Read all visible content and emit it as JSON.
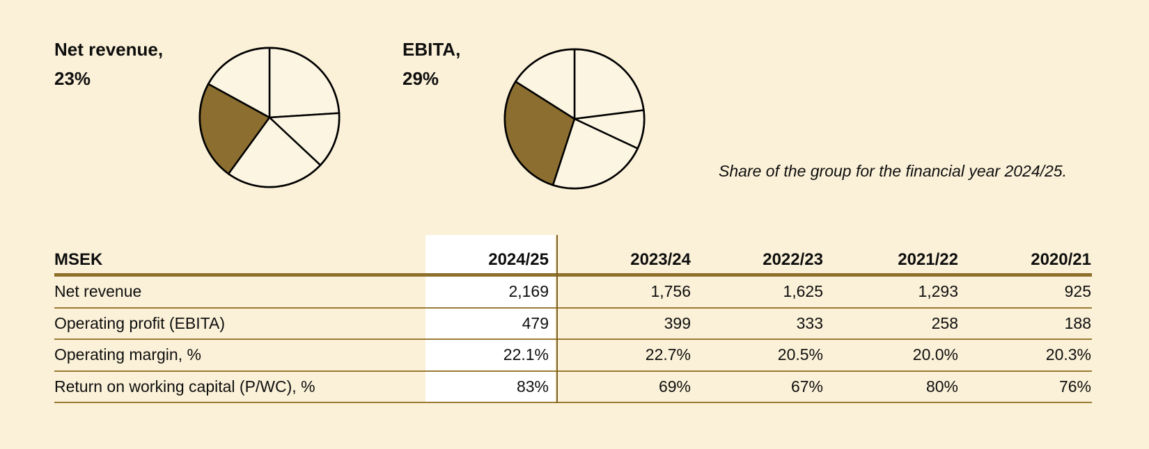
{
  "page": {
    "background": "#FBF1D8",
    "caption": "Share of the group for the financial year 2024/25."
  },
  "colors": {
    "highlight": "#8B6E30",
    "pie_fill": "#FCF5E2",
    "pie_stroke": "#000000",
    "table_thick_line": "#8E6F2C",
    "table_thin_line": "#997A33",
    "highlight_column_bg": "#FFFFFF",
    "column_divider": "#7A5F20",
    "text": "#0e0e0e"
  },
  "chart_data": [
    {
      "type": "pie",
      "label": "Net revenue,",
      "value_label": "23%",
      "slices_percent": [
        24,
        13,
        23,
        23,
        17
      ],
      "highlight_index": 3,
      "highlight_share": 23,
      "start": "12-o-clock",
      "direction": "clockwise",
      "legend": "none"
    },
    {
      "type": "pie",
      "label": "EBITA,",
      "value_label": "29%",
      "slices_percent": [
        23,
        9,
        23,
        29,
        16
      ],
      "highlight_index": 3,
      "highlight_share": 29,
      "start": "12-o-clock",
      "direction": "clockwise",
      "legend": "none"
    },
    {
      "type": "table",
      "caption": "Share of the group for the financial year 2024/25.",
      "columns": [
        "MSEK",
        "2024/25",
        "2023/24",
        "2022/23",
        "2021/22",
        "2020/21"
      ],
      "highlighted_column": "2024/25",
      "rows": [
        [
          "Net revenue",
          "2,169",
          "1,756",
          "1,625",
          "1,293",
          "925"
        ],
        [
          "Operating profit (EBITA)",
          "479",
          "399",
          "333",
          "258",
          "188"
        ],
        [
          "Operating margin, %",
          "22.1%",
          "22.7%",
          "20.5%",
          "20.0%",
          "20.3%"
        ],
        [
          "Return on working capital (P/WC), %",
          "83%",
          "69%",
          "67%",
          "80%",
          "76%"
        ]
      ]
    }
  ]
}
